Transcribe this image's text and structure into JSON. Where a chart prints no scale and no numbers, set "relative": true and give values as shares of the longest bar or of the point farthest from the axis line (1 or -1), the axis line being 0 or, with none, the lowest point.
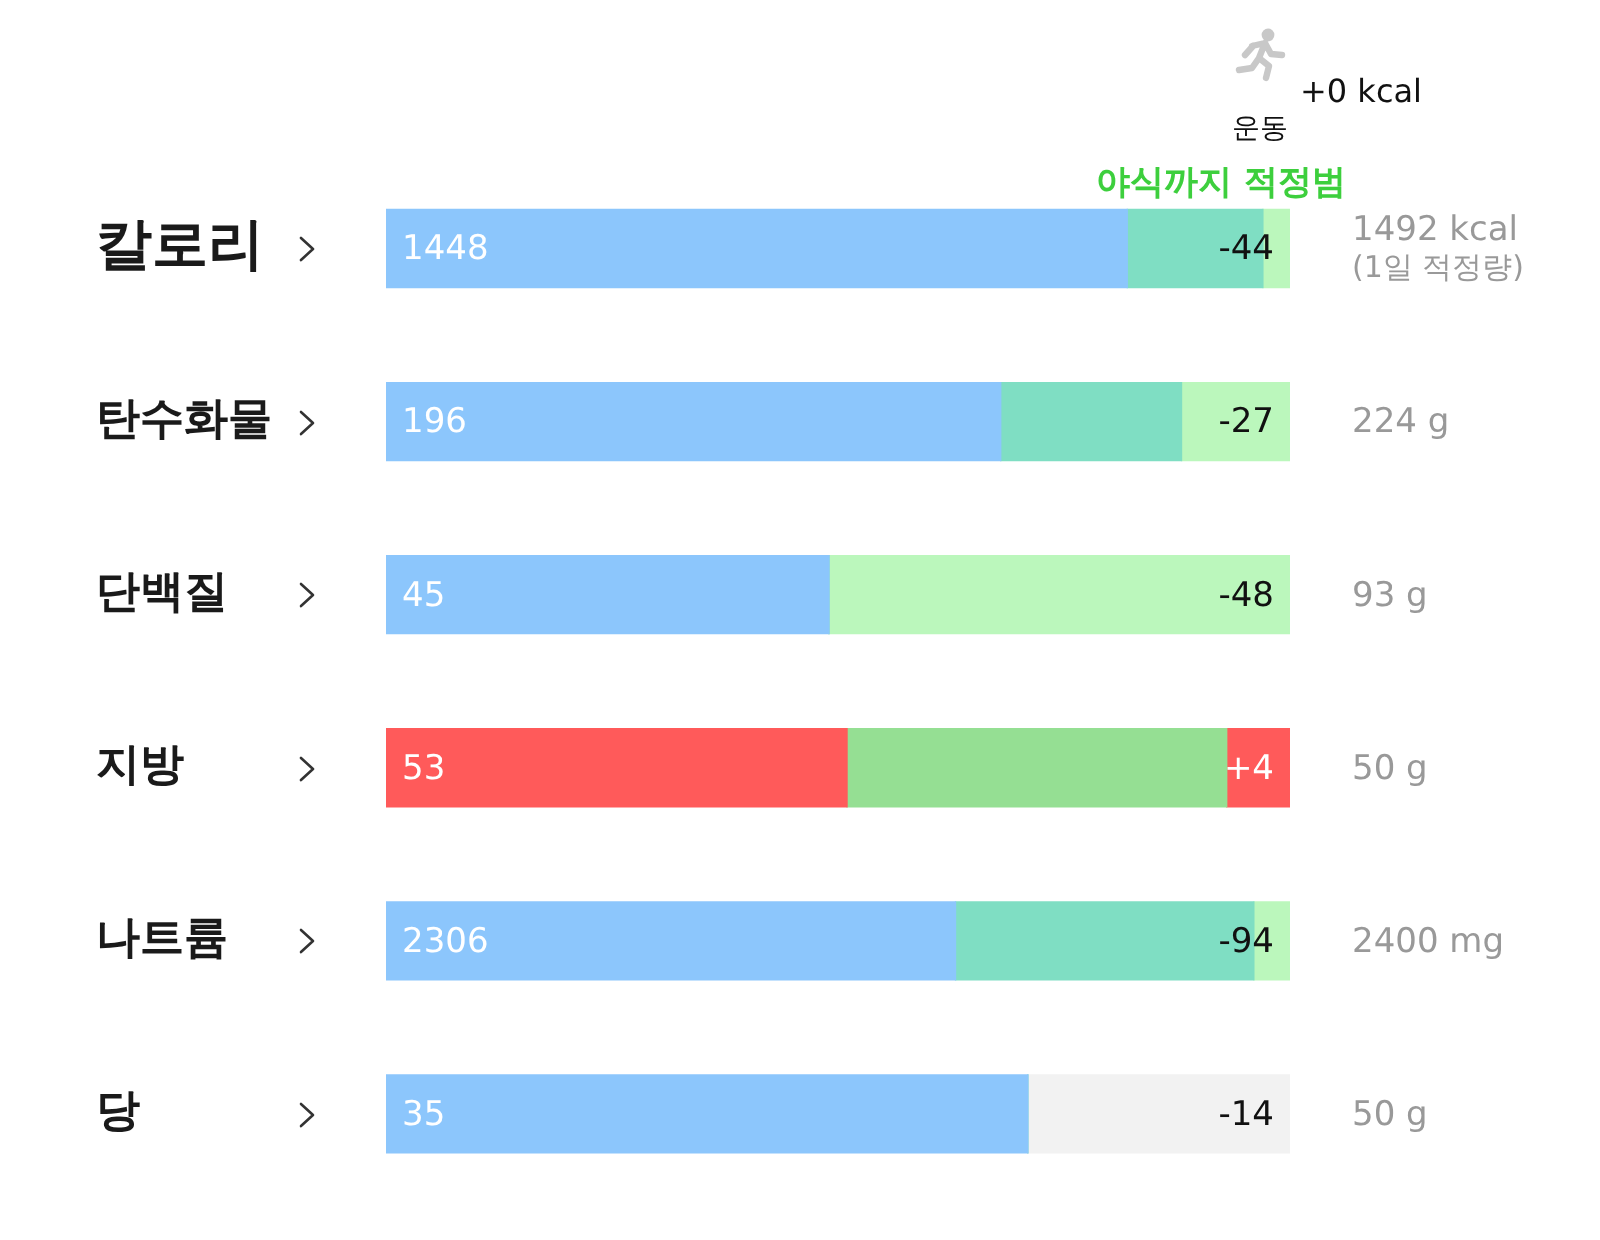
{
  "chart_data": {
    "type": "bar",
    "orientation": "horizontal",
    "stacked": true,
    "relative": true,
    "tick_labels": "y",
    "categories": [
      "칼로리",
      "탄수화물",
      "단백질",
      "지방",
      "나트륨",
      "당"
    ],
    "series": [
      {
        "colors": [
          "#8cc6fc",
          "#8cc6fc",
          "#8cc6fc",
          "#ff5a5a",
          "#8cc6fc",
          "#8cc6fc"
        ],
        "values": [
          0.82,
          0.68,
          0.49,
          0.51,
          0.63,
          0.71
        ]
      },
      {
        "colors": [
          "#7fdec3",
          "#7fdec3",
          "#7fdec3",
          "#95df93",
          "#7fdec3",
          "#7fdec3"
        ],
        "values": [
          0.15,
          0.2,
          0,
          0.42,
          0.33,
          0
        ]
      },
      {
        "colors": [
          "#bbf7bc",
          "#bbf7bc",
          "#bbf7bc",
          "#ff5a5a",
          "#bbf7bc",
          "#f2f2f2"
        ],
        "values": [
          0.03,
          0.12,
          0.51,
          0.07,
          0.04,
          0.29
        ]
      }
    ],
    "annotations": [
      "1448",
      "-44",
      "1492 kcal\n(1일 적정량)",
      "196",
      "-27",
      "224 g",
      "45",
      "-48",
      "93 g",
      "53",
      "+4",
      "50 g",
      "2306",
      "-94",
      "2400 mg",
      "35",
      "-14",
      "50 g",
      "야식까지 적정범",
      "+0 kcal",
      "운동"
    ]
  }
}
